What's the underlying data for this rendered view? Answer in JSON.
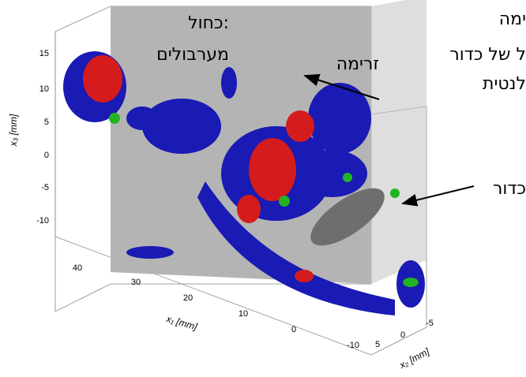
{
  "annotations": {
    "blue_title": "כחול:",
    "blue_label": "מערבולים",
    "flow": "זרימה",
    "right_1": "ימה",
    "right_2": "ל של כדור",
    "right_3": "לנטית",
    "right_4": "כדור"
  },
  "axes": {
    "x3": {
      "label": "x₃ [mm]",
      "ticks": [
        "15",
        "10",
        "5",
        "0",
        "-5",
        "-10"
      ]
    },
    "x1": {
      "label": "x₁ [mm]",
      "ticks": [
        "40",
        "30",
        "20",
        "10",
        "0",
        "-10"
      ]
    },
    "x2": {
      "label": "x₂ [mm]",
      "ticks": [
        "5",
        "0",
        "-5"
      ]
    }
  }
}
